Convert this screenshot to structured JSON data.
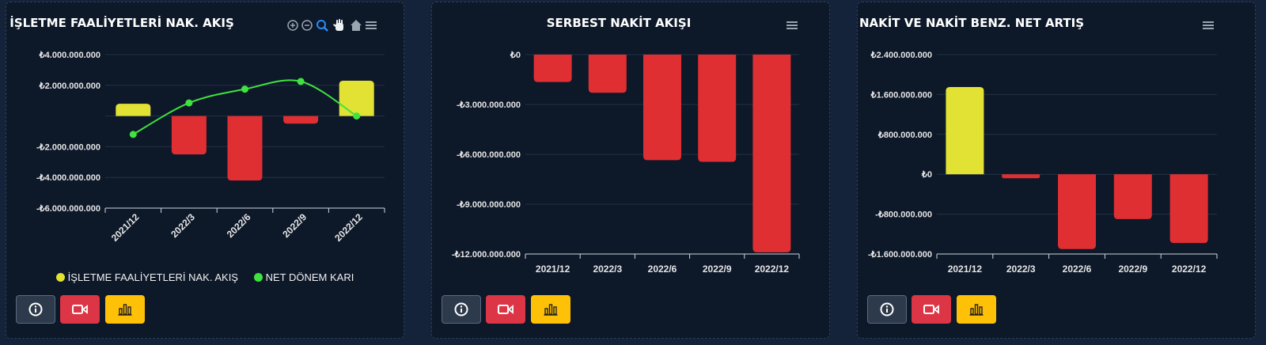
{
  "colors": {
    "positive_bar": "#e1e234",
    "negative_bar": "#df2f33",
    "line": "#3fe33f",
    "grid": "#243245",
    "axis": "#cfd6df"
  },
  "icons": {
    "zoom_in": "zoom-in-icon",
    "zoom_out": "zoom-out-icon",
    "zoom_select": "magnifier-icon",
    "pan": "hand-icon",
    "reset": "home-icon",
    "menu": "hamburger-menu-icon",
    "info": "info-icon",
    "video": "video-camera-icon",
    "chart": "bar-chart-icon"
  },
  "panels": [
    {
      "title": "İŞLETME FAALİYETLERİ NAK. AKIŞ",
      "toolbar": true,
      "legend": [
        {
          "label": "İŞLETME FAALİYETLERİ NAK. AKIŞ",
          "color": "#e1e234"
        },
        {
          "label": "NET DÖNEM KARI",
          "color": "#3fe33f"
        }
      ]
    },
    {
      "title": "SERBEST NAKİT AKIŞI",
      "toolbar": false,
      "legend": []
    },
    {
      "title": "NAKİT VE NAKİT BENZ. NET ARTIŞ",
      "toolbar": false,
      "legend": []
    }
  ],
  "chart_data": [
    {
      "type": "bar",
      "title": "İŞLETME FAALİYETLERİ NAK. AKIŞ",
      "categories": [
        "2021/12",
        "2022/3",
        "2022/6",
        "2022/9",
        "2022/12"
      ],
      "series": [
        {
          "name": "İŞLETME FAALİYETLERİ NAK. AKIŞ",
          "type": "bar",
          "values": [
            800000000,
            -2500000000,
            -4200000000,
            -500000000,
            2300000000
          ]
        },
        {
          "name": "NET DÖNEM KARI",
          "type": "line",
          "values": [
            -1200000000,
            850000000,
            1750000000,
            2250000000,
            0
          ]
        }
      ],
      "ylim": [
        -6000000000,
        4000000000
      ],
      "yticks": [
        4000000000,
        2000000000,
        0,
        -2000000000,
        -4000000000,
        -6000000000
      ],
      "ytick_labels": [
        "₺4.000.000.000",
        "₺2.000.000.000",
        "",
        "-₺2.000.000.000",
        "-₺4.000.000.000",
        "-₺6.000.000.000"
      ],
      "x_rotated": true,
      "grid": true,
      "legend": "bottom"
    },
    {
      "type": "bar",
      "title": "SERBEST NAKİT AKIŞI",
      "categories": [
        "2021/12",
        "2022/3",
        "2022/6",
        "2022/9",
        "2022/12"
      ],
      "series": [
        {
          "type": "bar",
          "values": [
            -1650000000,
            -2300000000,
            -6350000000,
            -6450000000,
            -11900000000
          ]
        }
      ],
      "ylim": [
        -12000000000,
        0
      ],
      "yticks": [
        0,
        -3000000000,
        -6000000000,
        -9000000000,
        -12000000000
      ],
      "ytick_labels": [
        "₺0",
        "-₺3.000.000.000",
        "-₺6.000.000.000",
        "-₺9.000.000.000",
        "-₺12.000.000.000"
      ],
      "x_rotated": false,
      "grid": true
    },
    {
      "type": "bar",
      "title": "NAKİT VE NAKİT BENZ. NET ARTIŞ",
      "categories": [
        "2021/12",
        "2022/3",
        "2022/6",
        "2022/9",
        "2022/12"
      ],
      "series": [
        {
          "type": "bar",
          "values": [
            1750000000,
            -80000000,
            -1500000000,
            -900000000,
            -1380000000
          ]
        }
      ],
      "ylim": [
        -1600000000,
        2400000000
      ],
      "yticks": [
        2400000000,
        1600000000,
        800000000,
        0,
        -800000000,
        -1600000000
      ],
      "ytick_labels": [
        "₺2.400.000.000",
        "₺1.600.000.000",
        "₺800.000.000",
        "₺0",
        "-₺800.000.000",
        "-₺1.600.000.000"
      ],
      "x_rotated": false,
      "grid": true
    }
  ]
}
